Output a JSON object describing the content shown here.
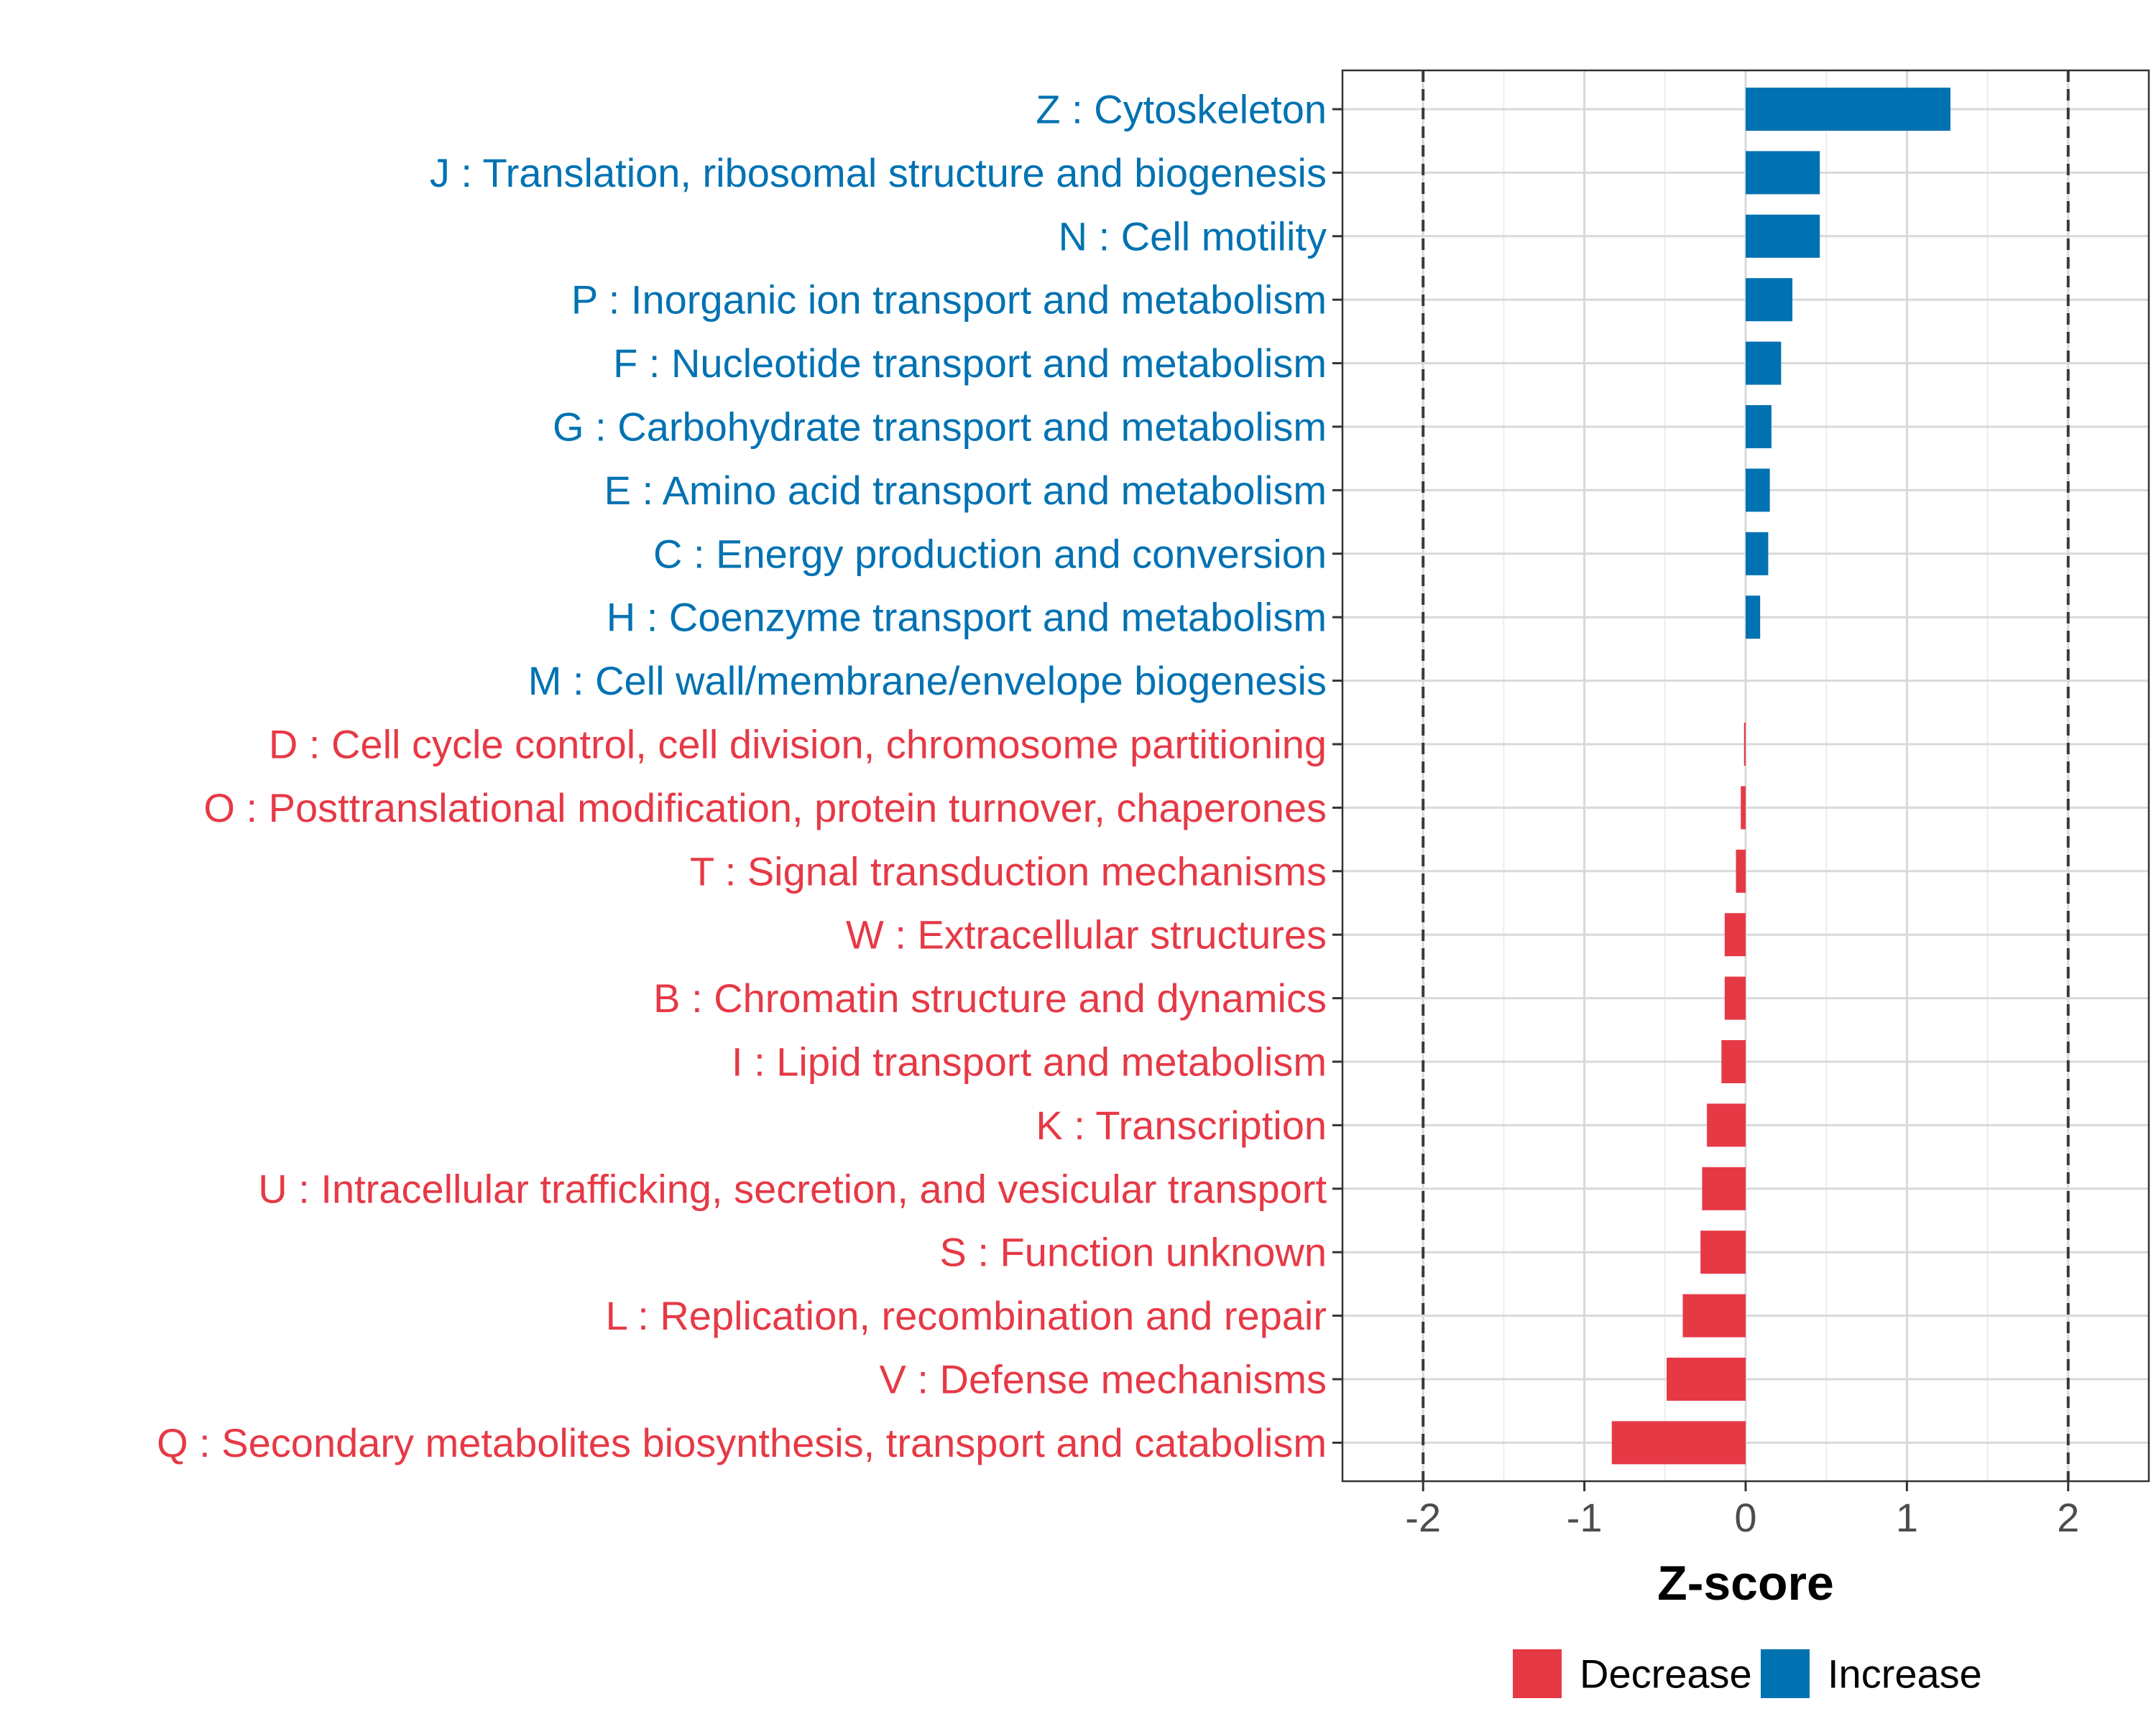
{
  "colors": {
    "increase": "#0072B2",
    "decrease": "#E63946"
  },
  "chart_data": {
    "type": "bar",
    "orientation": "horizontal",
    "title": "",
    "xlabel": "Z-score",
    "ylabel": "",
    "xlim": [
      -2.5,
      2.5
    ],
    "xticks": [
      -2,
      -1,
      0,
      1,
      2
    ],
    "tick_labels": [
      "-2",
      "-1",
      "0",
      "1",
      "2"
    ],
    "reference_lines": [
      -2,
      2
    ],
    "grid": true,
    "categories": [
      "Z : Cytoskeleton",
      "J : Translation, ribosomal structure and biogenesis",
      "N : Cell motility",
      "P : Inorganic ion transport and metabolism",
      "F : Nucleotide transport and metabolism",
      "G : Carbohydrate transport and metabolism",
      "E : Amino acid transport and metabolism",
      "C : Energy production and conversion",
      "H : Coenzyme transport and metabolism",
      "M : Cell wall/membrane/envelope biogenesis",
      "D : Cell cycle control, cell division, chromosome partitioning",
      "O : Posttranslational modification, protein turnover, chaperones",
      "T : Signal transduction mechanisms",
      "W : Extracellular structures",
      "B : Chromatin structure and dynamics",
      "I : Lipid transport and metabolism",
      "K : Transcription",
      "U : Intracellular trafficking, secretion, and vesicular transport",
      "S : Function unknown",
      "L : Replication, recombination and repair",
      "V : Defense mechanisms",
      "Q : Secondary metabolites biosynthesis, transport and catabolism"
    ],
    "values": [
      1.27,
      0.46,
      0.46,
      0.29,
      0.22,
      0.16,
      0.15,
      0.14,
      0.09,
      0.0,
      -0.01,
      -0.03,
      -0.06,
      -0.13,
      -0.13,
      -0.15,
      -0.24,
      -0.27,
      -0.28,
      -0.39,
      -0.49,
      -0.83
    ],
    "groups": [
      "Increase",
      "Increase",
      "Increase",
      "Increase",
      "Increase",
      "Increase",
      "Increase",
      "Increase",
      "Increase",
      "Increase",
      "Decrease",
      "Decrease",
      "Decrease",
      "Decrease",
      "Decrease",
      "Decrease",
      "Decrease",
      "Decrease",
      "Decrease",
      "Decrease",
      "Decrease",
      "Decrease"
    ],
    "legend": {
      "position": "bottom",
      "entries": [
        {
          "label": "Decrease",
          "color_key": "decrease"
        },
        {
          "label": "Increase",
          "color_key": "increase"
        }
      ]
    }
  }
}
